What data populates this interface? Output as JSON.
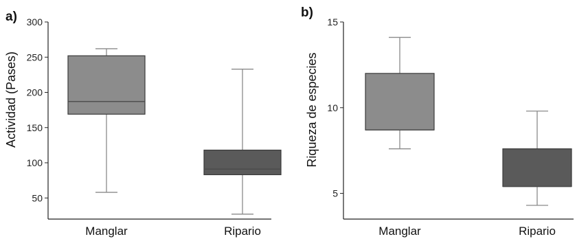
{
  "chart_data": [
    {
      "type": "boxplot",
      "panel_label": "a)",
      "ylabel": "Actividad (Pases)",
      "ylim": [
        20,
        300
      ],
      "yticks": [
        50,
        100,
        150,
        200,
        250,
        300
      ],
      "categories": [
        "Manglar",
        "Ripario"
      ],
      "boxes": [
        {
          "category": "Manglar",
          "min": 58,
          "q1": 169,
          "median": 187,
          "q3": 252,
          "max": 262,
          "color": "#8c8c8c"
        },
        {
          "category": "Ripario",
          "min": 27,
          "q1": 83,
          "median": 91,
          "q3": 118,
          "max": 233,
          "color": "#5a5a5a"
        }
      ]
    },
    {
      "type": "boxplot",
      "panel_label": "b)",
      "ylabel": "Riqueza de especies",
      "ylim": [
        3.5,
        15
      ],
      "yticks": [
        5,
        10,
        15
      ],
      "categories": [
        "Manglar",
        "Ripario"
      ],
      "boxes": [
        {
          "category": "Manglar",
          "min": 7.6,
          "q1": 8.7,
          "median": 8.7,
          "q3": 12.0,
          "max": 14.1,
          "color": "#8c8c8c"
        },
        {
          "category": "Ripario",
          "min": 4.3,
          "q1": 5.4,
          "median": 5.4,
          "q3": 7.6,
          "max": 9.8,
          "color": "#5a5a5a"
        }
      ]
    }
  ]
}
